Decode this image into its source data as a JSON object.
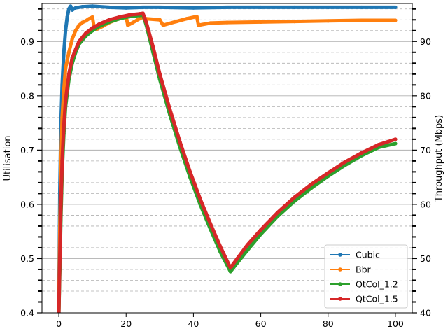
{
  "chart_data": {
    "type": "line",
    "title": "",
    "xlabel": "",
    "ylabel": "Utilisation",
    "y2label": "Throughput (Mbps)",
    "xlim": [
      -5,
      105
    ],
    "ylim": [
      0.4,
      0.97
    ],
    "y2lim": [
      40,
      97
    ],
    "xticks": [
      "0",
      "20",
      "40",
      "60",
      "80",
      "100"
    ],
    "yticks": [
      "0.4",
      "0.5",
      "0.6",
      "0.7",
      "0.8",
      "0.9"
    ],
    "y2ticks": [
      "40",
      "50",
      "60",
      "70",
      "80",
      "90"
    ],
    "grid": "horizontal major and minor (dashed minor)",
    "legend_position": "bottom-right",
    "series": [
      {
        "name": "Cubic",
        "color": "#1f77b4",
        "points": [
          [
            0,
            0.4
          ],
          [
            0.3,
            0.62
          ],
          [
            0.6,
            0.74
          ],
          [
            1,
            0.82
          ],
          [
            1.5,
            0.88
          ],
          [
            2,
            0.92
          ],
          [
            2.5,
            0.945
          ],
          [
            3,
            0.96
          ],
          [
            3.5,
            0.965
          ],
          [
            4,
            0.958
          ],
          [
            5,
            0.962
          ],
          [
            7,
            0.964
          ],
          [
            10,
            0.965
          ],
          [
            15,
            0.963
          ],
          [
            20,
            0.962
          ],
          [
            25,
            0.963
          ],
          [
            30,
            0.963
          ],
          [
            40,
            0.962
          ],
          [
            50,
            0.963
          ],
          [
            60,
            0.963
          ],
          [
            70,
            0.963
          ],
          [
            80,
            0.963
          ],
          [
            90,
            0.963
          ],
          [
            100,
            0.963
          ]
        ]
      },
      {
        "name": "Bbr",
        "color": "#ff7f0e",
        "points": [
          [
            0,
            0.4
          ],
          [
            0.3,
            0.55
          ],
          [
            0.6,
            0.66
          ],
          [
            1,
            0.76
          ],
          [
            1.5,
            0.81
          ],
          [
            2,
            0.85
          ],
          [
            3,
            0.88
          ],
          [
            4,
            0.905
          ],
          [
            5,
            0.92
          ],
          [
            6,
            0.93
          ],
          [
            7,
            0.935
          ],
          [
            8,
            0.938
          ],
          [
            9,
            0.942
          ],
          [
            10,
            0.945
          ],
          [
            10.5,
            0.925
          ],
          [
            11,
            0.922
          ],
          [
            13,
            0.928
          ],
          [
            15,
            0.935
          ],
          [
            17,
            0.94
          ],
          [
            19,
            0.944
          ],
          [
            20,
            0.946
          ],
          [
            20.5,
            0.93
          ],
          [
            22,
            0.935
          ],
          [
            24,
            0.942
          ],
          [
            25,
            0.945
          ],
          [
            26,
            0.942
          ],
          [
            30,
            0.94
          ],
          [
            31,
            0.93
          ],
          [
            35,
            0.937
          ],
          [
            38,
            0.942
          ],
          [
            41,
            0.946
          ],
          [
            41.5,
            0.93
          ],
          [
            45,
            0.934
          ],
          [
            50,
            0.935
          ],
          [
            60,
            0.936
          ],
          [
            70,
            0.937
          ],
          [
            80,
            0.938
          ],
          [
            90,
            0.939
          ],
          [
            100,
            0.939
          ]
        ]
      },
      {
        "name": "QtCol_1.2",
        "color": "#2ca02c",
        "points": [
          [
            0,
            0.4
          ],
          [
            0.3,
            0.48
          ],
          [
            0.6,
            0.57
          ],
          [
            1,
            0.66
          ],
          [
            1.5,
            0.73
          ],
          [
            2,
            0.78
          ],
          [
            3,
            0.83
          ],
          [
            4,
            0.86
          ],
          [
            5,
            0.88
          ],
          [
            6,
            0.895
          ],
          [
            8,
            0.91
          ],
          [
            10,
            0.92
          ],
          [
            12,
            0.928
          ],
          [
            15,
            0.936
          ],
          [
            18,
            0.942
          ],
          [
            21,
            0.946
          ],
          [
            24,
            0.948
          ],
          [
            25,
            0.949
          ],
          [
            26,
            0.93
          ],
          [
            28,
            0.88
          ],
          [
            30,
            0.83
          ],
          [
            33,
            0.765
          ],
          [
            36,
            0.705
          ],
          [
            39,
            0.65
          ],
          [
            42,
            0.6
          ],
          [
            45,
            0.555
          ],
          [
            48,
            0.512
          ],
          [
            51,
            0.476
          ],
          [
            53,
            0.492
          ],
          [
            56,
            0.515
          ],
          [
            60,
            0.545
          ],
          [
            65,
            0.578
          ],
          [
            70,
            0.606
          ],
          [
            75,
            0.63
          ],
          [
            80,
            0.652
          ],
          [
            85,
            0.672
          ],
          [
            90,
            0.69
          ],
          [
            95,
            0.705
          ],
          [
            100,
            0.712
          ]
        ]
      },
      {
        "name": "QtCol_1.5",
        "color": "#d62728",
        "points": [
          [
            0,
            0.4
          ],
          [
            0.3,
            0.5
          ],
          [
            0.6,
            0.59
          ],
          [
            1,
            0.68
          ],
          [
            1.5,
            0.745
          ],
          [
            2,
            0.79
          ],
          [
            3,
            0.84
          ],
          [
            4,
            0.87
          ],
          [
            5,
            0.885
          ],
          [
            6,
            0.9
          ],
          [
            8,
            0.915
          ],
          [
            10,
            0.925
          ],
          [
            12,
            0.932
          ],
          [
            15,
            0.94
          ],
          [
            18,
            0.945
          ],
          [
            21,
            0.949
          ],
          [
            24,
            0.951
          ],
          [
            25,
            0.952
          ],
          [
            26,
            0.935
          ],
          [
            28,
            0.89
          ],
          [
            30,
            0.84
          ],
          [
            33,
            0.775
          ],
          [
            36,
            0.715
          ],
          [
            39,
            0.66
          ],
          [
            42,
            0.61
          ],
          [
            45,
            0.565
          ],
          [
            48,
            0.522
          ],
          [
            51,
            0.483
          ],
          [
            53,
            0.5
          ],
          [
            56,
            0.525
          ],
          [
            60,
            0.553
          ],
          [
            65,
            0.585
          ],
          [
            70,
            0.613
          ],
          [
            75,
            0.637
          ],
          [
            80,
            0.658
          ],
          [
            85,
            0.678
          ],
          [
            90,
            0.695
          ],
          [
            95,
            0.71
          ],
          [
            100,
            0.72
          ]
        ]
      }
    ]
  }
}
